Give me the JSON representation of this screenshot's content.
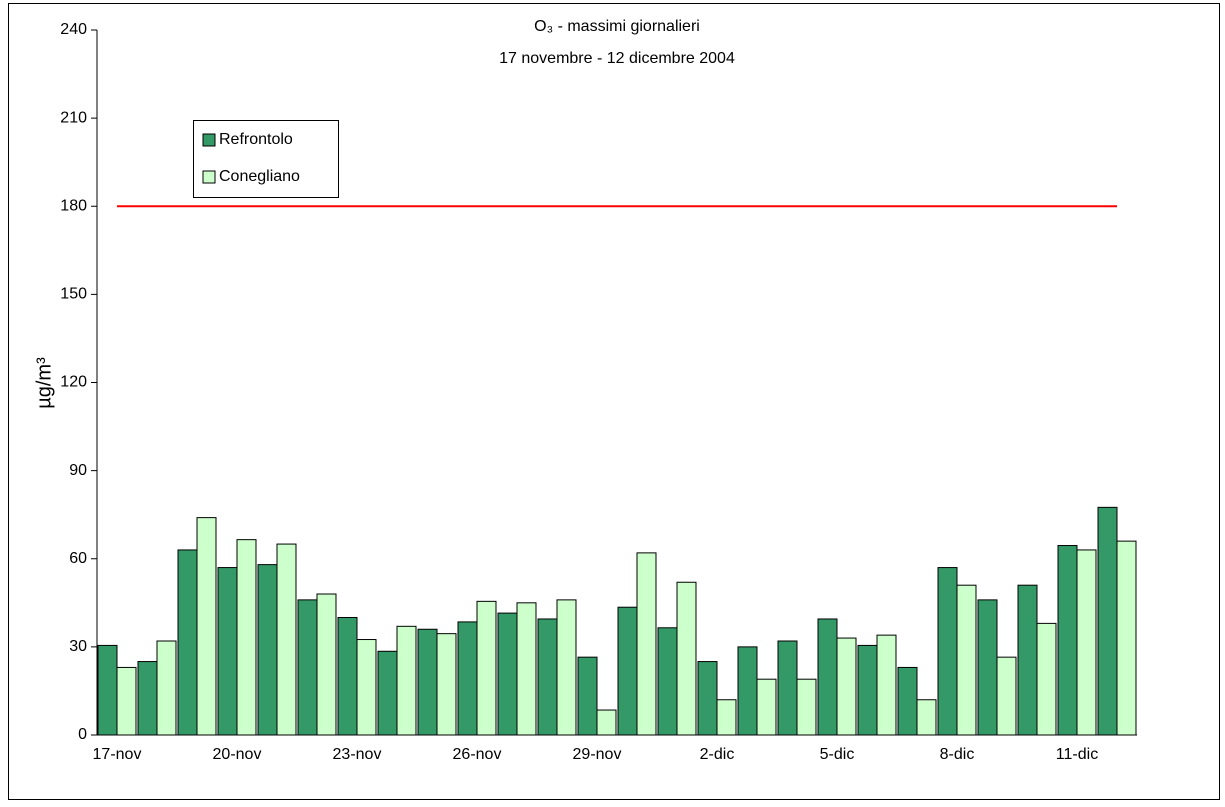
{
  "chart_data": {
    "type": "bar",
    "title": "O₃ - massimi giornalieri",
    "subtitle": "17 novembre - 12 dicembre 2004",
    "y_label": "µg/m³",
    "categories": [
      "17-nov",
      null,
      null,
      "20-nov",
      null,
      null,
      "23-nov",
      null,
      null,
      "26-nov",
      null,
      null,
      "29-nov",
      null,
      null,
      "2-dic",
      null,
      null,
      "5-dic",
      null,
      null,
      "8-dic",
      null,
      null,
      "11-dic",
      null
    ],
    "series": [
      {
        "name": "Refrontolo",
        "color": "#339966",
        "values": [
          30.5,
          25,
          63,
          57,
          58,
          46,
          40,
          28.5,
          36,
          38.5,
          41.5,
          39.5,
          26.5,
          43.5,
          36.5,
          25,
          30,
          32,
          39.5,
          30.5,
          23,
          57,
          46,
          51,
          64.5,
          77.5
        ]
      },
      {
        "name": "Conegliano",
        "color": "#ccffcc",
        "values": [
          23,
          32,
          74,
          66.5,
          65,
          48,
          32.5,
          37,
          34.5,
          45.5,
          45,
          46,
          8.5,
          62,
          52,
          12,
          19,
          19,
          33,
          34,
          12,
          51,
          26.5,
          38,
          63,
          66
        ]
      }
    ],
    "reference_line": {
      "value": 180,
      "color": "#ff0000"
    },
    "ylim": [
      0,
      240
    ],
    "yticks": [
      0,
      30,
      60,
      90,
      120,
      150,
      180,
      210,
      240
    ],
    "legend": "top-left",
    "grid": false
  }
}
